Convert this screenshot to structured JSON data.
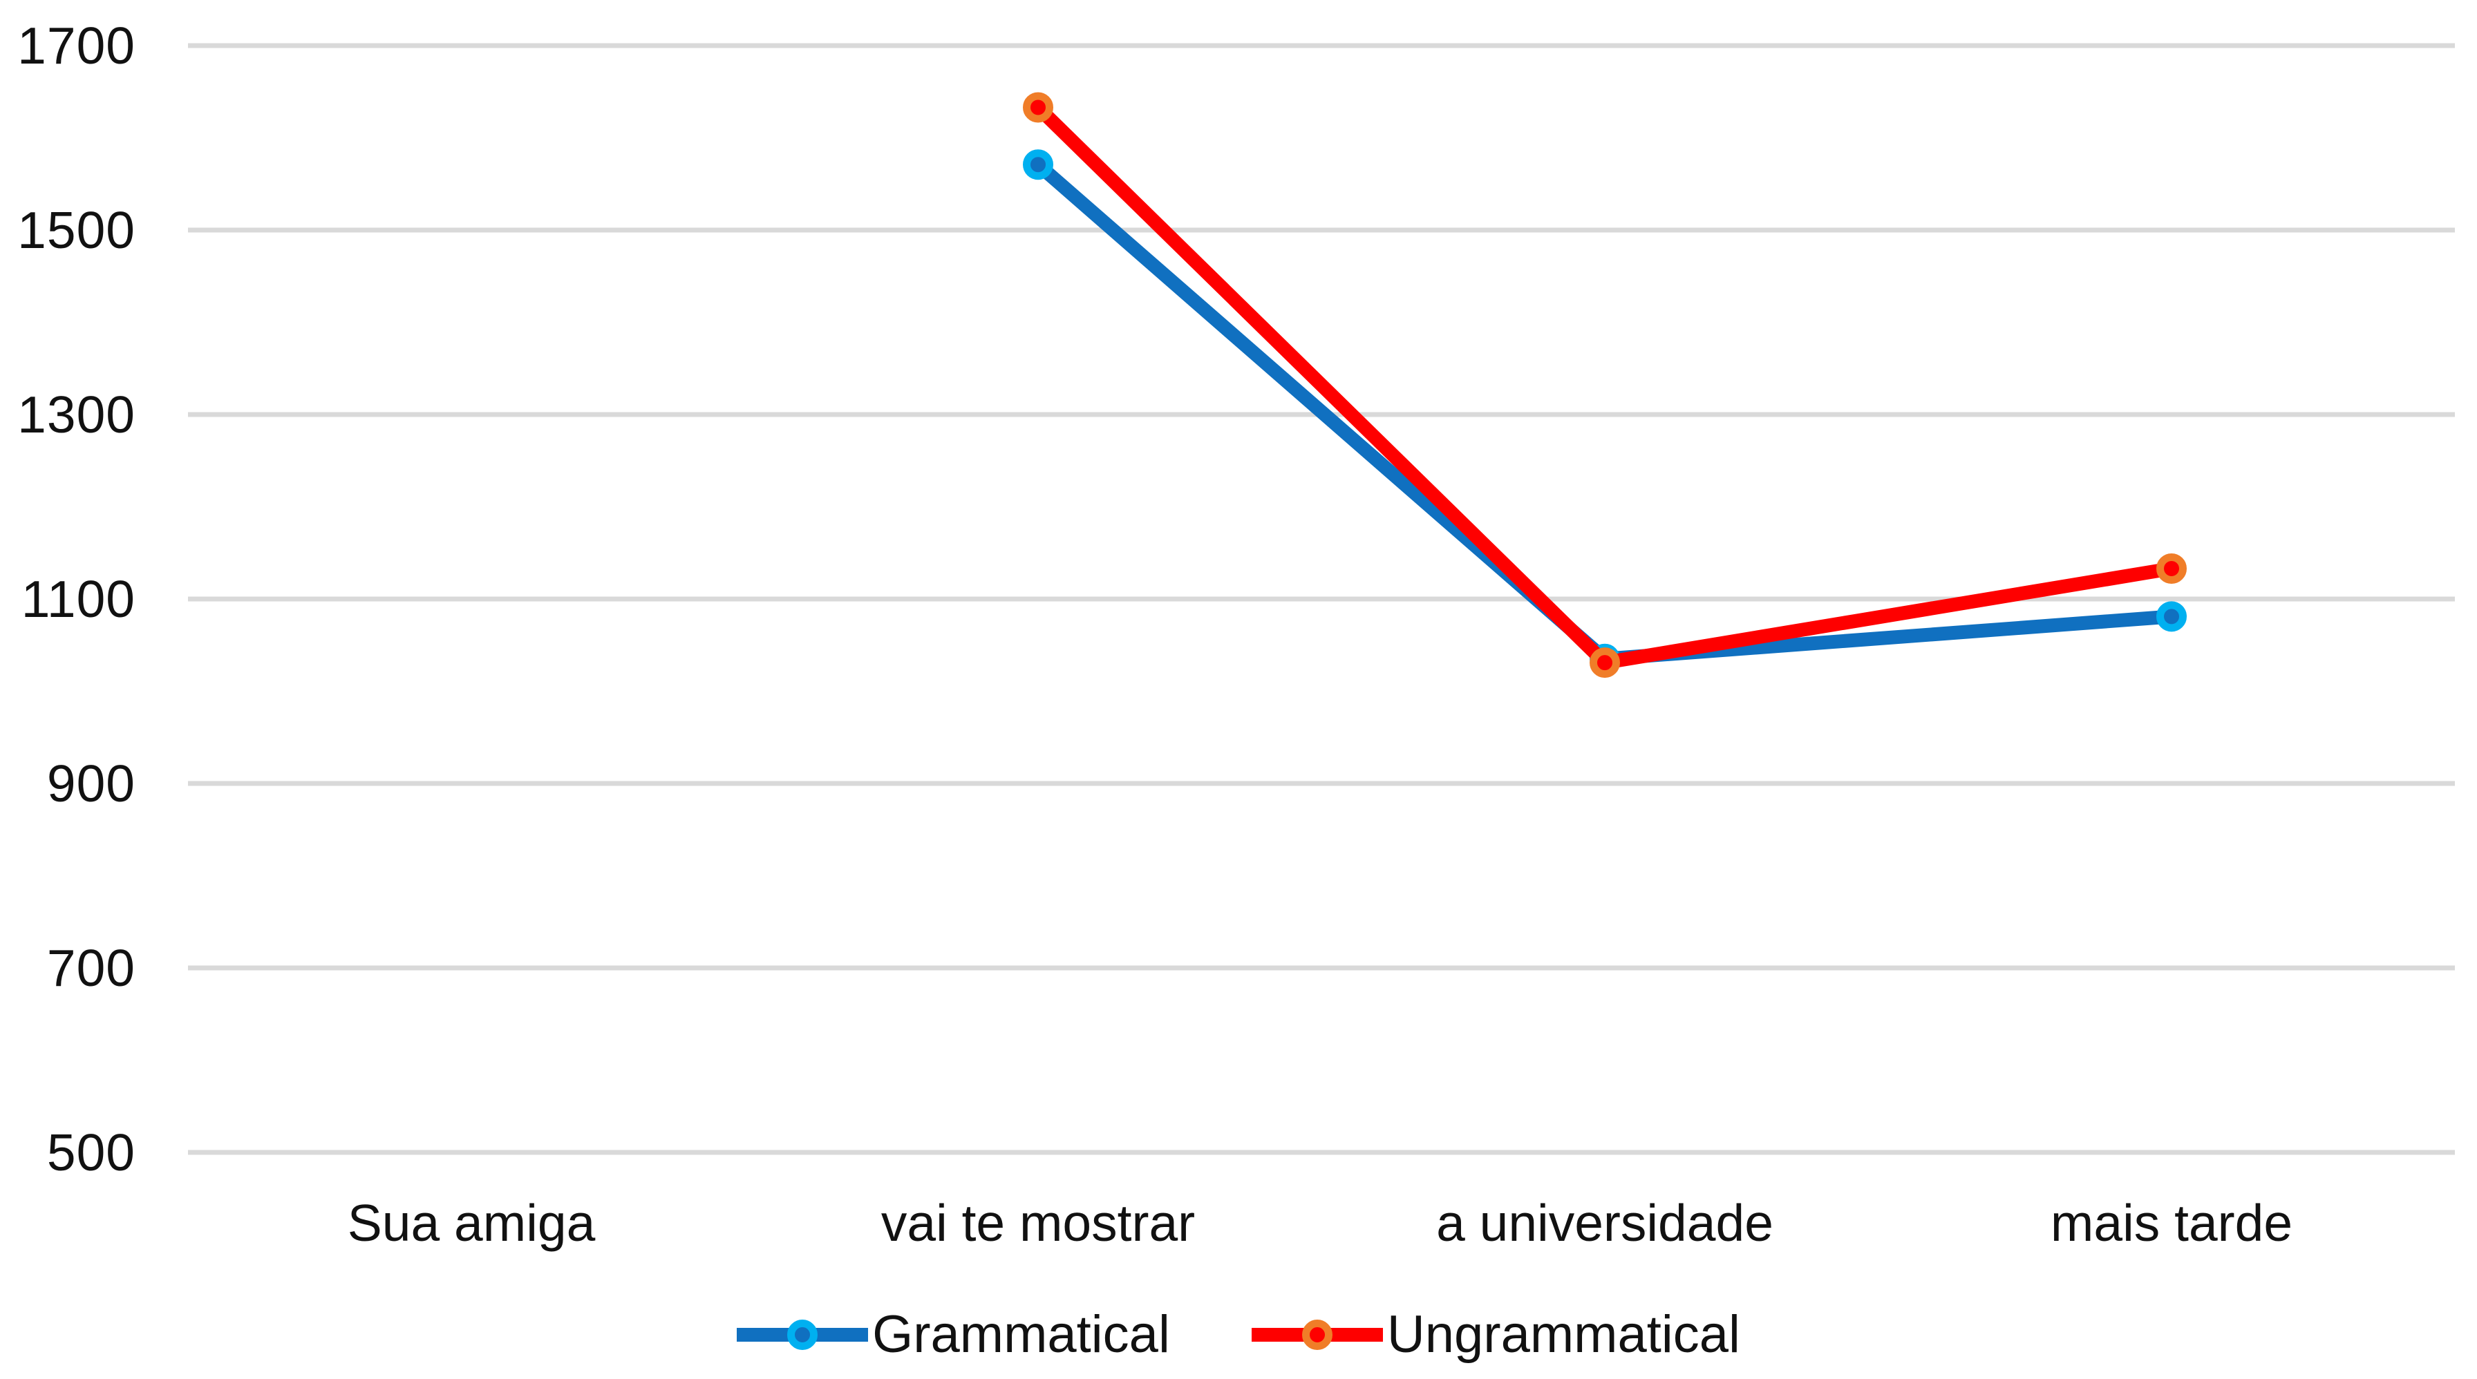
{
  "chart_data": {
    "type": "line",
    "title": "",
    "xlabel": "",
    "ylabel": "",
    "categories": [
      "Sua amiga",
      "vai te mostrar",
      "a universidade",
      "mais tarde"
    ],
    "series": [
      {
        "name": "Grammatical",
        "color": "#1070C0",
        "marker_ring": "#00B0F0",
        "values": [
          null,
          1571,
          1035,
          1081
        ]
      },
      {
        "name": "Ungrammatical",
        "color": "#FE0000",
        "marker_ring": "#F07D28",
        "values": [
          null,
          1633,
          1031,
          1133
        ]
      }
    ],
    "yticks": [
      1700,
      1500,
      1300,
      1100,
      900,
      700,
      500
    ],
    "ylim": [
      500,
      1700
    ],
    "grid": true,
    "gridline_color": "#D9D9D9",
    "text_color": "#111111",
    "legend_position": "bottom"
  }
}
